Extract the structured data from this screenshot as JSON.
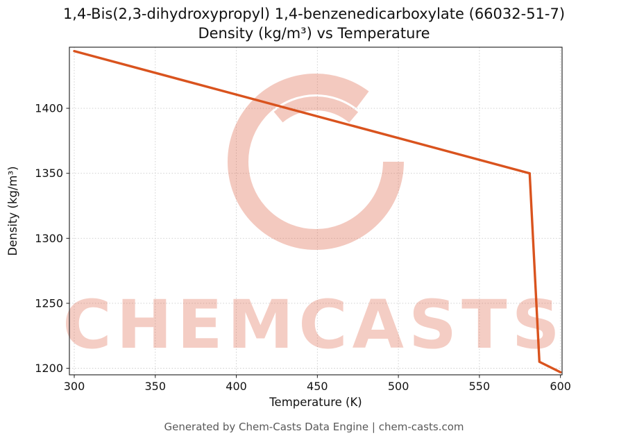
{
  "title_line1": "1,4-Bis(2,3-dihydroxypropyl) 1,4-benzenedicarboxylate (66032-51-7)",
  "title_line2": "Density (kg/m³) vs Temperature",
  "footer": {
    "text": "Generated by Chem-Casts Data Engine | chem-casts.com"
  },
  "watermark": {
    "text": "CHEMCASTS",
    "color": "#dc5a3c",
    "text_opacity": 0.3,
    "logo_opacity": 0.33
  },
  "chart_data": {
    "type": "line",
    "title": "1,4-Bis(2,3-dihydroxypropyl) 1,4-benzenedicarboxylate (66032-51-7) Density (kg/m³) vs Temperature",
    "xlabel": "Temperature (K)",
    "ylabel": "Density (kg/m³)",
    "xlim": [
      297,
      601
    ],
    "ylim": [
      1195,
      1447
    ],
    "xticks": [
      300,
      350,
      400,
      450,
      500,
      550,
      600
    ],
    "yticks": [
      1200,
      1250,
      1300,
      1350,
      1400
    ],
    "grid": true,
    "legend": false,
    "line_color": "#d9531e",
    "series": [
      {
        "name": "Density",
        "x": [
          300,
          581,
          587,
          600
        ],
        "y": [
          1444,
          1350,
          1205,
          1197
        ]
      }
    ]
  }
}
